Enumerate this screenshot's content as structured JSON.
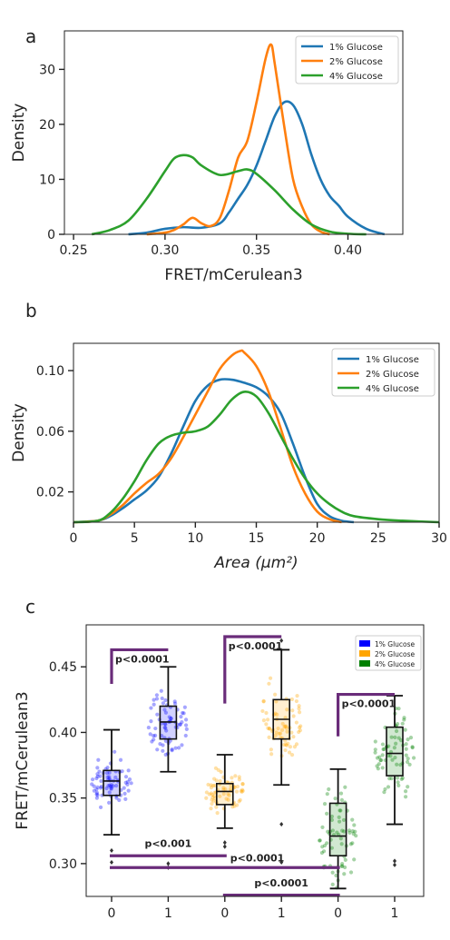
{
  "panels": {
    "a_letter": "a",
    "b_letter": "b",
    "c_letter": "c"
  },
  "colors": {
    "g1_line": "#1f77b4",
    "g2_line": "#ff7f0e",
    "g4_line": "#2ca02c",
    "g1_box": "#0000ff",
    "g2_box": "#ffa500",
    "g4_box": "#008000",
    "bracket": "#6a2c7a"
  },
  "chart_data": [
    {
      "type": "line",
      "panel": "a",
      "xlabel": "FRET/mCerulean3",
      "ylabel": "Density",
      "xlim": [
        0.245,
        0.43
      ],
      "ylim": [
        0,
        37
      ],
      "xticks": [
        "0.25",
        "0.30",
        "0.35",
        "0.40"
      ],
      "xtick_values": [
        0.25,
        0.3,
        0.35,
        0.4
      ],
      "yticks": [
        "0",
        "10",
        "20",
        "30"
      ],
      "ytick_values": [
        0,
        10,
        20,
        30
      ],
      "legend_position": "top-right",
      "series": [
        {
          "name": "1% Glucose",
          "color": "#1f77b4",
          "x": [
            0.28,
            0.29,
            0.3,
            0.31,
            0.32,
            0.33,
            0.335,
            0.34,
            0.345,
            0.35,
            0.355,
            0.36,
            0.365,
            0.37,
            0.375,
            0.38,
            0.385,
            0.39,
            0.395,
            0.4,
            0.41,
            0.42
          ],
          "y": [
            0,
            0.3,
            1.0,
            1.3,
            1.2,
            2.0,
            4.0,
            6.5,
            9.0,
            12.5,
            17.0,
            21.5,
            24.0,
            23.5,
            20.0,
            14.5,
            10.0,
            7.0,
            5.2,
            3.2,
            1.0,
            0
          ]
        },
        {
          "name": "2% Glucose",
          "color": "#ff7f0e",
          "x": [
            0.29,
            0.3,
            0.305,
            0.31,
            0.315,
            0.32,
            0.325,
            0.33,
            0.335,
            0.34,
            0.345,
            0.35,
            0.355,
            0.358,
            0.36,
            0.365,
            0.37,
            0.375,
            0.38,
            0.385,
            0.39
          ],
          "y": [
            0,
            0.3,
            0.8,
            1.8,
            3.0,
            2.0,
            1.5,
            3.0,
            8.0,
            14.0,
            17.0,
            24.0,
            32.0,
            34.5,
            31.0,
            20.0,
            10.0,
            5.0,
            1.8,
            0.5,
            0
          ]
        },
        {
          "name": "4% Glucose",
          "color": "#2ca02c",
          "x": [
            0.26,
            0.27,
            0.28,
            0.29,
            0.3,
            0.305,
            0.31,
            0.315,
            0.32,
            0.33,
            0.34,
            0.345,
            0.35,
            0.36,
            0.37,
            0.38,
            0.39,
            0.4,
            0.41
          ],
          "y": [
            0,
            0.8,
            2.5,
            6.5,
            11.5,
            13.8,
            14.4,
            14.0,
            12.5,
            10.8,
            11.5,
            11.8,
            11.0,
            8.0,
            4.5,
            1.8,
            0.5,
            0.1,
            0
          ]
        }
      ]
    },
    {
      "type": "line",
      "panel": "b",
      "xlabel": "Area (μm²)",
      "ylabel": "Density",
      "xlim": [
        0,
        30
      ],
      "ylim": [
        0,
        0.118
      ],
      "xticks": [
        "0",
        "5",
        "10",
        "15",
        "20",
        "25",
        "30"
      ],
      "xtick_values": [
        0,
        5,
        10,
        15,
        20,
        25,
        30
      ],
      "yticks": [
        "0.02",
        "0.06",
        "0.10"
      ],
      "ytick_values": [
        0.02,
        0.06,
        0.1
      ],
      "legend_position": "top-right",
      "series": [
        {
          "name": "1% Glucose",
          "color": "#1f77b4",
          "x": [
            0,
            2,
            3,
            4,
            5,
            6,
            7,
            8,
            9,
            10,
            11,
            12,
            13,
            14,
            15,
            16,
            17,
            18,
            19,
            20,
            21,
            22,
            23
          ],
          "y": [
            0,
            0.001,
            0.004,
            0.009,
            0.015,
            0.021,
            0.03,
            0.045,
            0.063,
            0.08,
            0.09,
            0.094,
            0.094,
            0.092,
            0.089,
            0.083,
            0.072,
            0.052,
            0.03,
            0.012,
            0.004,
            0.001,
            0
          ]
        },
        {
          "name": "2% Glucose",
          "color": "#ff7f0e",
          "x": [
            0,
            2,
            3,
            4,
            5,
            6,
            7,
            8,
            9,
            10,
            11,
            12,
            13,
            13.7,
            14,
            15,
            16,
            17,
            18,
            19,
            20,
            21,
            22
          ],
          "y": [
            0,
            0.001,
            0.005,
            0.011,
            0.019,
            0.026,
            0.032,
            0.042,
            0.056,
            0.071,
            0.086,
            0.101,
            0.11,
            0.113,
            0.112,
            0.103,
            0.086,
            0.062,
            0.037,
            0.019,
            0.007,
            0.002,
            0
          ]
        },
        {
          "name": "4% Glucose",
          "color": "#2ca02c",
          "x": [
            0,
            2,
            3,
            4,
            5,
            6,
            7,
            8,
            9,
            10,
            11,
            12,
            13,
            14,
            15,
            16,
            17,
            18,
            19,
            20,
            21,
            22,
            23,
            25,
            27,
            30
          ],
          "y": [
            0,
            0.001,
            0.006,
            0.015,
            0.027,
            0.041,
            0.052,
            0.057,
            0.059,
            0.06,
            0.063,
            0.071,
            0.081,
            0.086,
            0.083,
            0.072,
            0.057,
            0.042,
            0.029,
            0.019,
            0.012,
            0.007,
            0.004,
            0.002,
            0.001,
            0
          ]
        }
      ]
    },
    {
      "type": "box",
      "panel": "c",
      "xlabel": "",
      "ylabel": "FRET/mCerulean3",
      "ylim": [
        0.275,
        0.482
      ],
      "yticks": [
        "0.30",
        "0.35",
        "0.40",
        "0.45"
      ],
      "ytick_values": [
        0.3,
        0.35,
        0.4,
        0.45
      ],
      "categories": [
        "0",
        "1",
        "0",
        "1",
        "0",
        "1"
      ],
      "legend_position": "top-right",
      "legend": [
        "1% Glucose",
        "2% Glucose",
        "4% Glucose"
      ],
      "boxes": [
        {
          "group": "1% Glucose",
          "min": 0.322,
          "q1": 0.352,
          "median": 0.363,
          "q3": 0.371,
          "max": 0.402,
          "outliers": [
            0.31,
            0.301
          ]
        },
        {
          "group": "1% Glucose",
          "min": 0.37,
          "q1": 0.395,
          "median": 0.408,
          "q3": 0.42,
          "max": 0.45,
          "outliers": [
            0.3,
            0.297
          ]
        },
        {
          "group": "2% Glucose",
          "min": 0.327,
          "q1": 0.345,
          "median": 0.355,
          "q3": 0.361,
          "max": 0.383,
          "outliers": [
            0.316,
            0.313
          ]
        },
        {
          "group": "2% Glucose",
          "min": 0.36,
          "q1": 0.395,
          "median": 0.41,
          "q3": 0.425,
          "max": 0.463,
          "outliers": [
            0.47,
            0.33,
            0.301
          ]
        },
        {
          "group": "4% Glucose",
          "min": 0.281,
          "q1": 0.306,
          "median": 0.321,
          "q3": 0.346,
          "max": 0.372,
          "outliers": []
        },
        {
          "group": "4% Glucose",
          "min": 0.33,
          "q1": 0.367,
          "median": 0.384,
          "q3": 0.404,
          "max": 0.428,
          "outliers": [
            0.302,
            0.299
          ]
        }
      ],
      "annotations": [
        {
          "text": "p<0.0001",
          "x1": 0,
          "x2": 1,
          "y_left": 0.437,
          "y_right": 0.437,
          "y": 0.463
        },
        {
          "text": "p<0.0001",
          "x1": 2,
          "x2": 3,
          "y_left": 0.422,
          "y_right": 0.473,
          "y": 0.473
        },
        {
          "text": "p<0.0001",
          "x1": 4,
          "x2": 5,
          "y_left": 0.397,
          "y_right": 0.429,
          "y": 0.429
        },
        {
          "text": "p<0.001",
          "x1": 0,
          "x2": 2,
          "y": 0.306,
          "label_y": 0.312
        },
        {
          "text": "p<0.0001",
          "x1": 0,
          "x2": 4,
          "y": 0.297,
          "label_y": 0.301
        },
        {
          "text": "p<0.0001",
          "x1": 2,
          "x2": 4,
          "y": 0.276,
          "label_y": 0.282
        }
      ]
    }
  ]
}
